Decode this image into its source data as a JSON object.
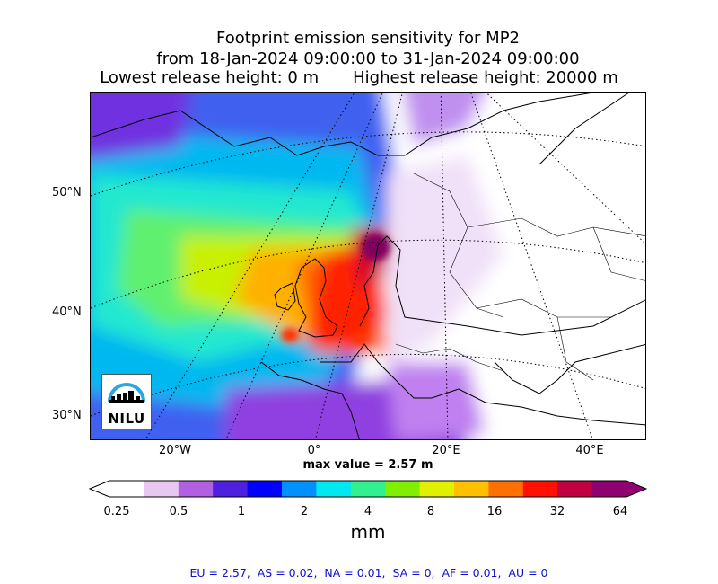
{
  "title": {
    "line1": "Footprint emission sensitivity for MP2",
    "line2": "from 18-Jan-2024 09:00:00 to 31-Jan-2024 09:00:00",
    "line3_left": "Lowest release height: 0 m",
    "line3_right": "Highest release height: 20000 m"
  },
  "axes": {
    "lat_labels": [
      "50°N",
      "40°N",
      "30°N"
    ],
    "lon_labels": [
      "20°W",
      "0°",
      "20°E",
      "40°E"
    ]
  },
  "max_value_text": "max value = 2.57 m",
  "colorbar": {
    "ticks": [
      "0.25",
      "0.5",
      "1",
      "2",
      "4",
      "8",
      "16",
      "32",
      "64"
    ],
    "units": "mm",
    "colors": [
      "#ffffff",
      "#e8c8f0",
      "#b060e0",
      "#5020e0",
      "#0000ff",
      "#0090ff",
      "#00e8f0",
      "#30f090",
      "#80f000",
      "#e0f000",
      "#ffc000",
      "#ff7000",
      "#ff1000",
      "#c00040",
      "#900070"
    ]
  },
  "stats": "EU = 2.57,  AS = 0.02,  NA = 0.01,  SA = 0,  AF = 0.01,  AU = 0",
  "logo": {
    "text": "NILU",
    "arc_color": "#29a8e0"
  }
}
